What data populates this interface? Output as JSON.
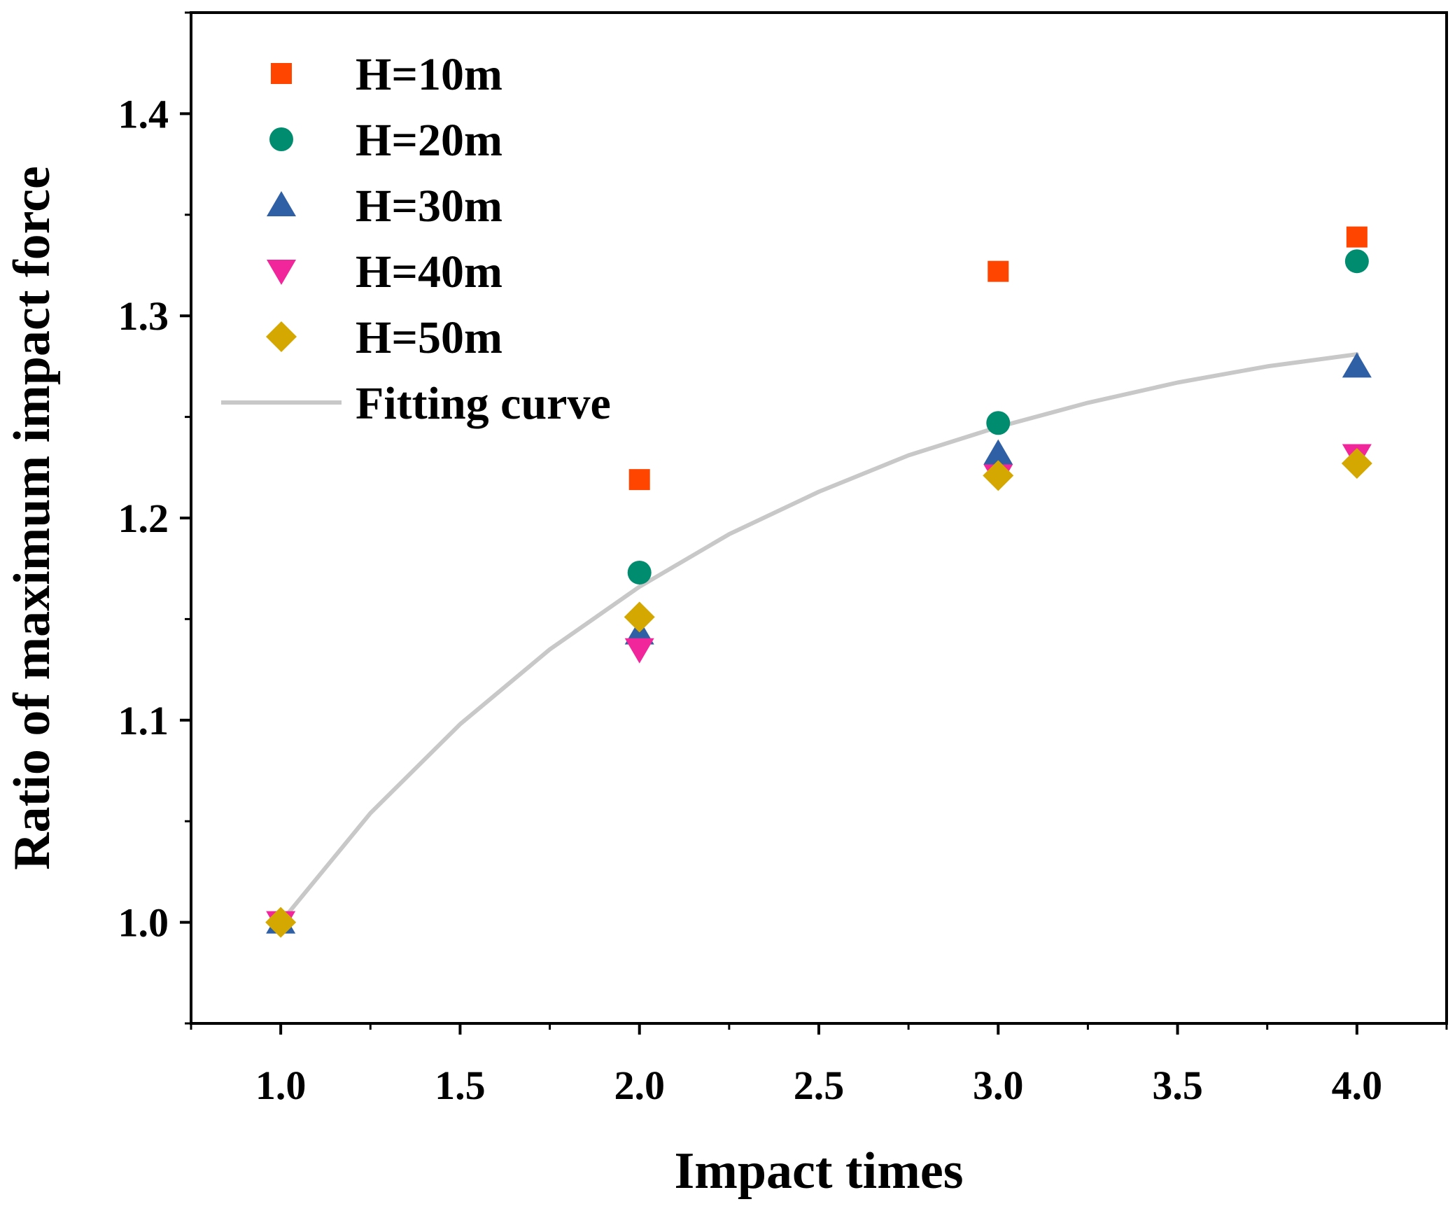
{
  "chart_data": {
    "type": "scatter",
    "title": "",
    "xlabel": "Impact times",
    "ylabel": "Ratio of maximum impact force",
    "xlim": [
      0.75,
      4.25
    ],
    "ylim": [
      0.95,
      1.45
    ],
    "x_ticks": [
      1.0,
      1.5,
      2.0,
      2.5,
      3.0,
      3.5,
      4.0
    ],
    "x_tick_labels": [
      "1.0",
      "1.5",
      "2.0",
      "2.5",
      "3.0",
      "3.5",
      "4.0"
    ],
    "y_ticks": [
      1.0,
      1.1,
      1.2,
      1.3,
      1.4
    ],
    "y_tick_labels": [
      "1.0",
      "1.1",
      "1.2",
      "1.3",
      "1.4"
    ],
    "grid": false,
    "legend_position": "top-left",
    "series": [
      {
        "name": "H=10m",
        "marker": "square",
        "color": "#FF4500",
        "x": [
          1,
          2,
          3,
          4
        ],
        "y": [
          1.0,
          1.219,
          1.322,
          1.339
        ]
      },
      {
        "name": "H=20m",
        "marker": "circle",
        "color": "#008C6E",
        "x": [
          1,
          2,
          3,
          4
        ],
        "y": [
          1.0,
          1.173,
          1.247,
          1.327
        ]
      },
      {
        "name": "H=30m",
        "marker": "triangle-up",
        "color": "#2F5FA5",
        "x": [
          1,
          2,
          3,
          4
        ],
        "y": [
          1.0,
          1.143,
          1.232,
          1.275
        ]
      },
      {
        "name": "H=40m",
        "marker": "triangle-down",
        "color": "#F0269A",
        "x": [
          1,
          2,
          3,
          4
        ],
        "y": [
          1.0,
          1.135,
          1.221,
          1.231
        ]
      },
      {
        "name": "H=50m",
        "marker": "diamond",
        "color": "#D4A800",
        "x": [
          1,
          2,
          3,
          4
        ],
        "y": [
          1.0,
          1.151,
          1.221,
          1.227
        ]
      }
    ],
    "fitting_curve": {
      "name": "Fitting curve",
      "color": "#C8C8C8",
      "x": [
        1.0,
        1.25,
        1.5,
        1.75,
        2.0,
        2.25,
        2.5,
        2.75,
        3.0,
        3.25,
        3.5,
        3.75,
        4.0
      ],
      "y": [
        1.0,
        1.054,
        1.098,
        1.135,
        1.166,
        1.192,
        1.213,
        1.231,
        1.245,
        1.257,
        1.267,
        1.275,
        1.281
      ]
    }
  }
}
